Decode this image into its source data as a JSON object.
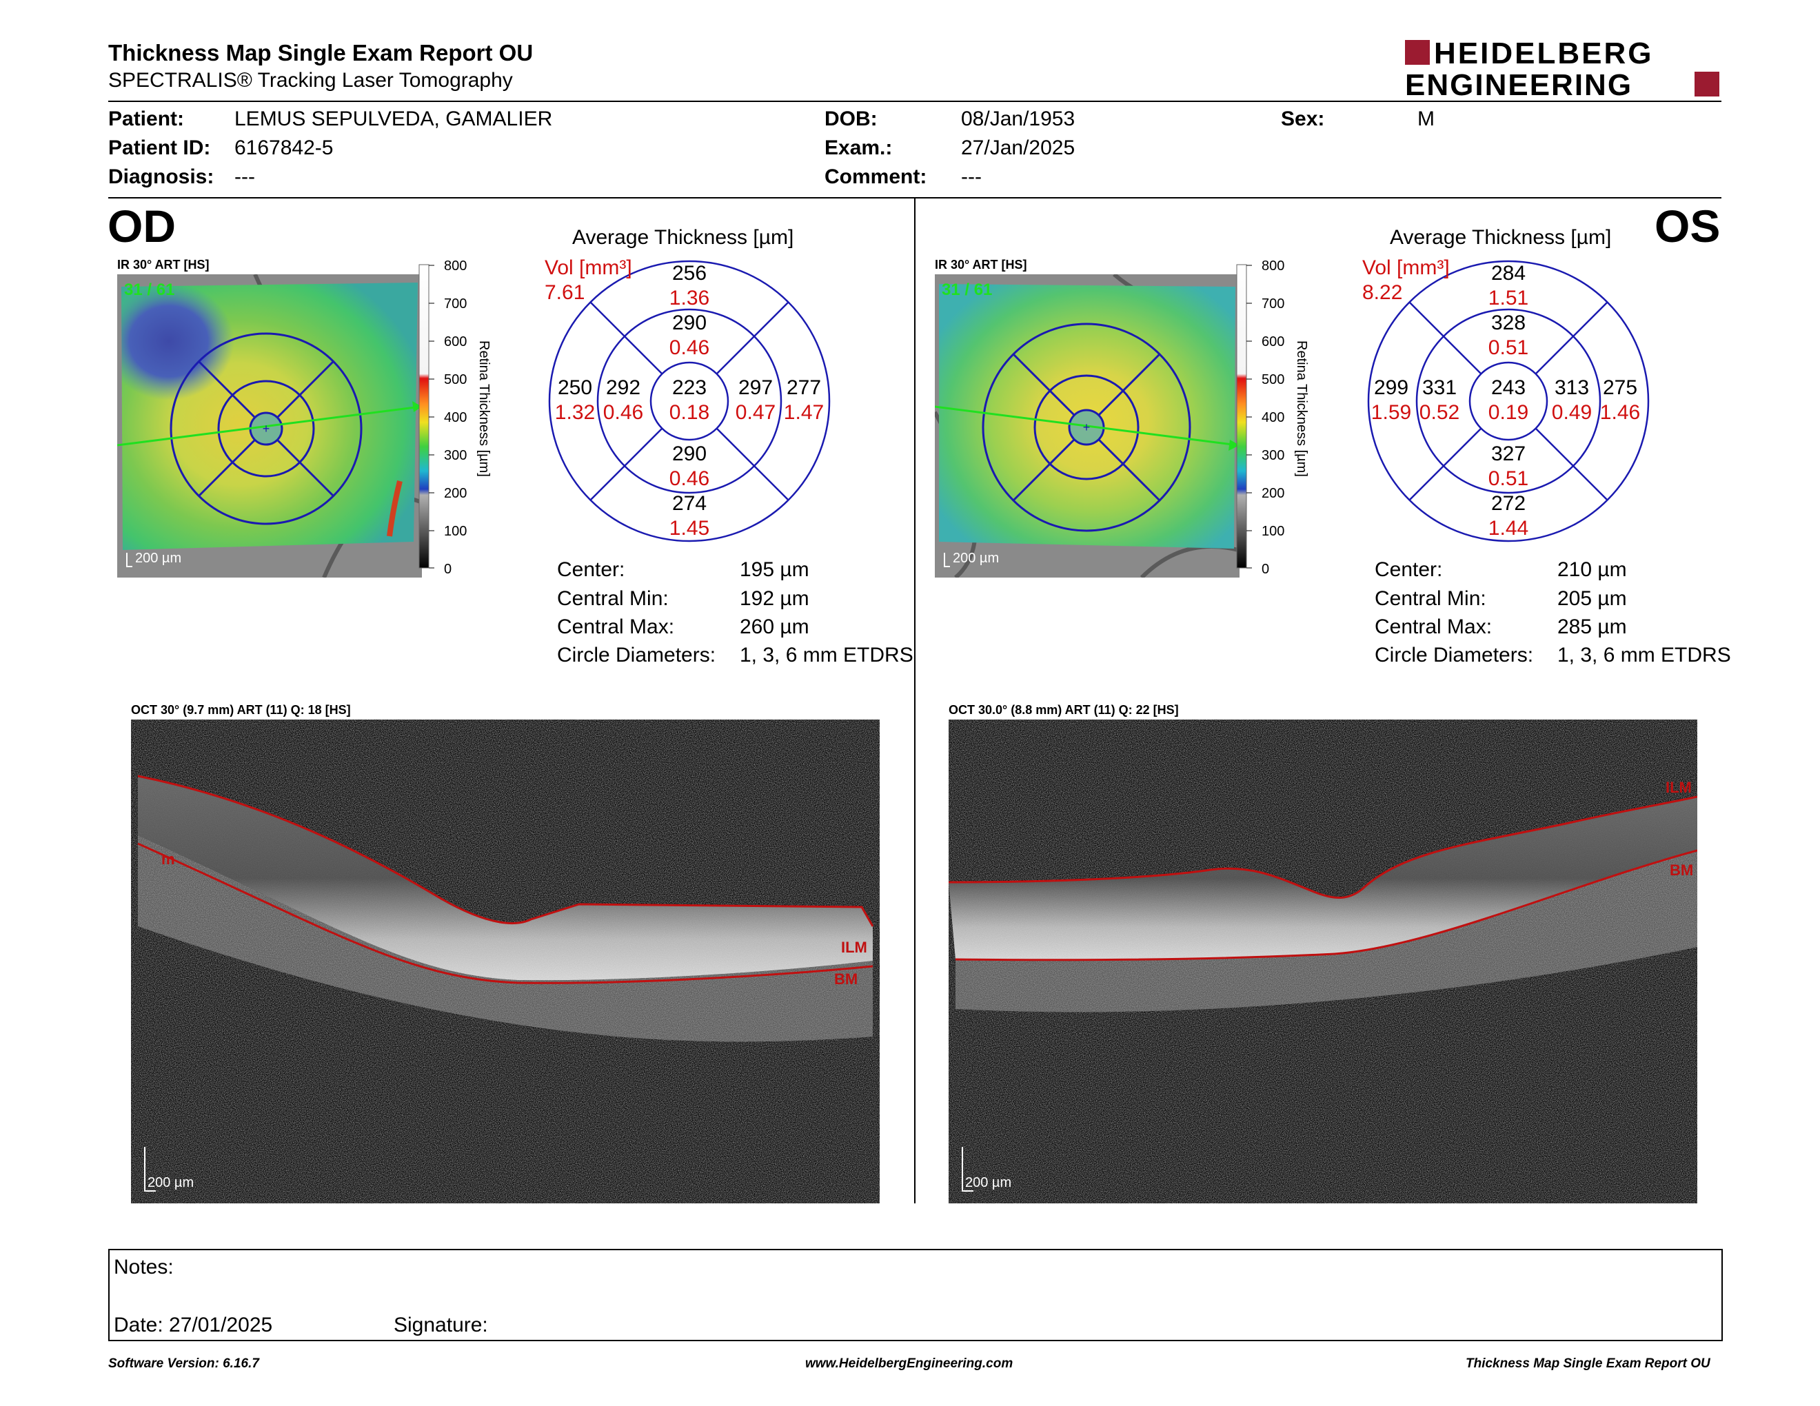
{
  "header": {
    "title": "Thickness Map Single Exam Report OU",
    "subtitle": "SPECTRALIS® Tracking Laser Tomography",
    "logo_line1": "HEIDELBERG",
    "logo_line2": "ENGINEERING",
    "brand_color": "#9b1b30"
  },
  "patient": {
    "patient_label": "Patient:",
    "patient_value": "LEMUS SEPULVEDA, GAMALIER",
    "id_label": "Patient ID:",
    "id_value": "6167842-5",
    "diagnosis_label": "Diagnosis:",
    "diagnosis_value": "---",
    "dob_label": "DOB:",
    "dob_value": "08/Jan/1953",
    "exam_label": "Exam.:",
    "exam_value": "27/Jan/2025",
    "comment_label": "Comment:",
    "comment_value": "---",
    "sex_label": "Sex:",
    "sex_value": "M"
  },
  "od": {
    "eye": "OD",
    "ir_label": "IR 30° ART [HS]",
    "frame": "31 / 61",
    "scale": "200 µm",
    "colorbar_ticks": [
      "800",
      "700",
      "600",
      "500",
      "400",
      "300",
      "200",
      "100",
      "0"
    ],
    "colorbar_title": "Retina Thickness [µm]",
    "avg_title": "Average Thickness [µm]",
    "vol_label": "Vol [mm³]",
    "vol_total": "7.61",
    "grid": {
      "outer_sup": {
        "t": "256",
        "v": "1.36"
      },
      "inner_sup": {
        "t": "290",
        "v": "0.46"
      },
      "outer_temp": {
        "t": "250",
        "v": "1.32"
      },
      "inner_temp": {
        "t": "292",
        "v": "0.46"
      },
      "center": {
        "t": "223",
        "v": "0.18"
      },
      "inner_nas": {
        "t": "297",
        "v": "0.47"
      },
      "outer_nas": {
        "t": "277",
        "v": "1.47"
      },
      "inner_inf": {
        "t": "290",
        "v": "0.46"
      },
      "outer_inf": {
        "t": "274",
        "v": "1.45"
      }
    },
    "stats": {
      "center_label": "Center:",
      "center_value": "195 µm",
      "min_label": "Central Min:",
      "min_value": "192 µm",
      "max_label": "Central Max:",
      "max_value": "260 µm",
      "diam_label": "Circle Diameters:",
      "diam_value": "1, 3, 6 mm ETDRS"
    },
    "oct_label": "OCT 30° (9.7 mm) ART (11) Q: 18 [HS]",
    "oct_scale": "200 µm",
    "ilm": "ILM",
    "bm": "BM",
    "m": "m"
  },
  "os": {
    "eye": "OS",
    "ir_label": "IR 30° ART [HS]",
    "frame": "31 / 61",
    "scale": "200 µm",
    "colorbar_ticks": [
      "800",
      "700",
      "600",
      "500",
      "400",
      "300",
      "200",
      "100",
      "0"
    ],
    "colorbar_title": "Retina Thickness [µm]",
    "avg_title": "Average Thickness [µm]",
    "vol_label": "Vol [mm³]",
    "vol_total": "8.22",
    "grid": {
      "outer_sup": {
        "t": "284",
        "v": "1.51"
      },
      "inner_sup": {
        "t": "328",
        "v": "0.51"
      },
      "outer_temp": {
        "t": "299",
        "v": "1.59"
      },
      "inner_temp": {
        "t": "331",
        "v": "0.52"
      },
      "center": {
        "t": "243",
        "v": "0.19"
      },
      "inner_nas": {
        "t": "313",
        "v": "0.49"
      },
      "outer_nas": {
        "t": "275",
        "v": "1.46"
      },
      "inner_inf": {
        "t": "327",
        "v": "0.51"
      },
      "outer_inf": {
        "t": "272",
        "v": "1.44"
      }
    },
    "stats": {
      "center_label": "Center:",
      "center_value": "210 µm",
      "min_label": "Central Min:",
      "min_value": "205 µm",
      "max_label": "Central Max:",
      "max_value": "285 µm",
      "diam_label": "Circle Diameters:",
      "diam_value": "1, 3, 6 mm ETDRS"
    },
    "oct_label": "OCT 30.0° (8.8 mm) ART (11) Q: 22 [HS]",
    "oct_scale": "200 µm",
    "ilm": "ILM",
    "bm": "BM"
  },
  "notes": {
    "notes_label": "Notes:",
    "date_label": "Date: 27/01/2025",
    "signature_label": "Signature:"
  },
  "footer": {
    "version": "Software Version: 6.16.7",
    "website": "www.HeidelbergEngineering.com",
    "report": "Thickness Map Single Exam Report OU"
  }
}
